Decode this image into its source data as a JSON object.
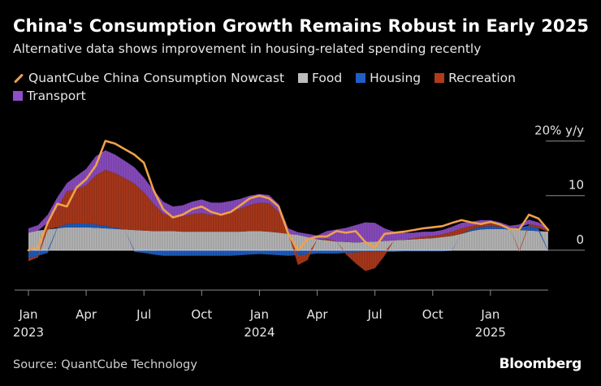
{
  "header": {
    "title": "China's Consumption Growth Remains Robust in Early 2025",
    "subtitle": "Alternative data shows improvement in housing-related spending recently"
  },
  "footer": {
    "source": "Source: QuantCube Technology",
    "brand": "Bloomberg"
  },
  "colors": {
    "nowcast": "#f0a04b",
    "food": "#bdbdbd",
    "housing": "#1f5fc4",
    "recreation": "#b03a1c",
    "transport": "#8e4ec6",
    "axis": "#8a8a8a",
    "text": "#e6e6e6"
  },
  "chart_data": {
    "type": "area",
    "title": "China's Consumption Growth Remains Robust in Early 2025",
    "subtitle": "Alternative data shows improvement in housing-related spending recently",
    "unit": "% y/y",
    "ylim": [
      -7,
      22
    ],
    "xlim": [
      0,
      27
    ],
    "y_ticks": [
      {
        "value": 20,
        "label": "20% y/y"
      },
      {
        "value": 10,
        "label": "10"
      },
      {
        "value": 0,
        "label": "0"
      }
    ],
    "x_ticks": [
      {
        "value": 0,
        "label": "Jan",
        "year": "2023"
      },
      {
        "value": 3,
        "label": "Apr",
        "year": ""
      },
      {
        "value": 6,
        "label": "Jul",
        "year": ""
      },
      {
        "value": 9,
        "label": "Oct",
        "year": ""
      },
      {
        "value": 12,
        "label": "Jan",
        "year": "2024"
      },
      {
        "value": 15,
        "label": "Apr",
        "year": ""
      },
      {
        "value": 18,
        "label": "Jul",
        "year": ""
      },
      {
        "value": 21,
        "label": "Oct",
        "year": ""
      },
      {
        "value": 24,
        "label": "Jan",
        "year": "2025"
      }
    ],
    "legend": [
      {
        "key": "nowcast",
        "label": "QuantCube China Consumption Nowcast",
        "kind": "line"
      },
      {
        "key": "food",
        "label": "Food",
        "kind": "area"
      },
      {
        "key": "housing",
        "label": "Housing",
        "kind": "area"
      },
      {
        "key": "recreation",
        "label": "Recreation",
        "kind": "area"
      },
      {
        "key": "transport",
        "label": "Transport",
        "kind": "area"
      }
    ],
    "x": [
      0,
      0.5,
      1,
      1.5,
      2,
      2.5,
      3,
      3.5,
      4,
      4.5,
      5,
      5.5,
      6,
      6.5,
      7,
      7.5,
      8,
      8.5,
      9,
      9.5,
      10,
      10.5,
      11,
      11.5,
      12,
      12.5,
      13,
      13.5,
      14,
      14.5,
      15,
      15.5,
      16,
      16.5,
      17,
      17.5,
      18,
      18.5,
      19,
      19.5,
      20,
      20.5,
      21,
      21.5,
      22,
      22.5,
      23,
      23.5,
      24,
      24.5,
      25,
      25.5,
      26,
      26.5,
      27
    ],
    "series": [
      {
        "name": "Food",
        "values": [
          3.2,
          3.6,
          3.8,
          4.0,
          4.2,
          4.2,
          4.2,
          4.1,
          4.0,
          3.9,
          3.8,
          3.7,
          3.6,
          3.5,
          3.5,
          3.5,
          3.4,
          3.4,
          3.4,
          3.4,
          3.4,
          3.4,
          3.4,
          3.5,
          3.5,
          3.4,
          3.2,
          3.0,
          2.8,
          2.4,
          2.0,
          1.8,
          1.6,
          1.5,
          1.4,
          1.5,
          1.6,
          1.7,
          1.8,
          1.9,
          2.0,
          2.1,
          2.2,
          2.4,
          2.6,
          3.0,
          3.5,
          3.8,
          3.9,
          3.9,
          3.8,
          3.7,
          3.6,
          3.5,
          3.4
        ]
      },
      {
        "name": "Housing",
        "values": [
          -1.5,
          -1.0,
          -0.5,
          0.2,
          0.6,
          0.7,
          0.7,
          0.6,
          0.5,
          0.2,
          0.0,
          -0.3,
          -0.5,
          -0.8,
          -1.0,
          -1.0,
          -1.0,
          -1.0,
          -1.0,
          -1.0,
          -1.0,
          -1.0,
          -0.9,
          -0.8,
          -0.7,
          -0.8,
          -0.9,
          -1.0,
          -0.9,
          -0.8,
          -0.6,
          -0.6,
          -0.6,
          -0.5,
          -0.4,
          -0.3,
          -0.3,
          -0.3,
          -0.3,
          -0.2,
          -0.2,
          -0.2,
          -0.2,
          -0.2,
          -0.1,
          0.0,
          0.3,
          0.5,
          0.5,
          0.4,
          0.3,
          0.5,
          0.9,
          0.5,
          -0.2
        ]
      },
      {
        "name": "Recreation",
        "values": [
          -0.5,
          -0.3,
          1.2,
          3.5,
          6.0,
          6.2,
          7.0,
          9.0,
          10.2,
          10.0,
          9.4,
          8.5,
          7.0,
          5.0,
          3.2,
          2.5,
          2.8,
          3.2,
          3.4,
          3.0,
          3.3,
          3.7,
          4.2,
          4.8,
          5.2,
          5.2,
          3.8,
          0.0,
          -1.8,
          -1.0,
          0.0,
          0.3,
          0.0,
          -0.3,
          -2.0,
          -3.5,
          -3.0,
          -0.7,
          0.0,
          0.0,
          0.2,
          0.4,
          0.4,
          0.5,
          0.8,
          1.0,
          0.6,
          0.5,
          0.5,
          0.3,
          0.0,
          -0.3,
          0.3,
          0.5,
          0.2
        ]
      },
      {
        "name": "Transport",
        "values": [
          0.8,
          1.0,
          1.5,
          2.0,
          1.5,
          2.5,
          3.0,
          3.5,
          3.6,
          3.4,
          3.2,
          3.0,
          2.7,
          2.5,
          2.2,
          2.0,
          2.0,
          2.3,
          2.5,
          2.3,
          2.0,
          1.9,
          1.8,
          1.7,
          1.6,
          1.5,
          1.4,
          1.0,
          0.5,
          0.6,
          0.7,
          1.4,
          2.2,
          2.6,
          3.2,
          3.6,
          3.4,
          2.3,
          1.6,
          1.3,
          1.0,
          0.9,
          0.8,
          0.8,
          0.9,
          1.0,
          0.8,
          0.7,
          0.6,
          0.5,
          0.4,
          0.5,
          0.8,
          0.6,
          0.4
        ]
      },
      {
        "name": "QuantCube China Consumption Nowcast",
        "values": [
          0.0,
          0.5,
          5.0,
          8.5,
          8.0,
          11.5,
          13.0,
          15.5,
          20.0,
          19.5,
          18.5,
          17.5,
          16.0,
          11.0,
          7.5,
          6.0,
          6.5,
          7.5,
          8.0,
          7.0,
          6.5,
          7.0,
          8.2,
          9.5,
          10.0,
          9.5,
          8.0,
          3.0,
          0.0,
          2.0,
          2.5,
          2.5,
          3.5,
          3.2,
          3.5,
          1.5,
          0.5,
          3.0,
          3.2,
          3.4,
          3.7,
          4.0,
          4.2,
          4.4,
          5.0,
          5.5,
          5.1,
          4.8,
          5.2,
          4.7,
          3.9,
          3.8,
          6.5,
          5.8,
          3.7
        ]
      }
    ]
  }
}
